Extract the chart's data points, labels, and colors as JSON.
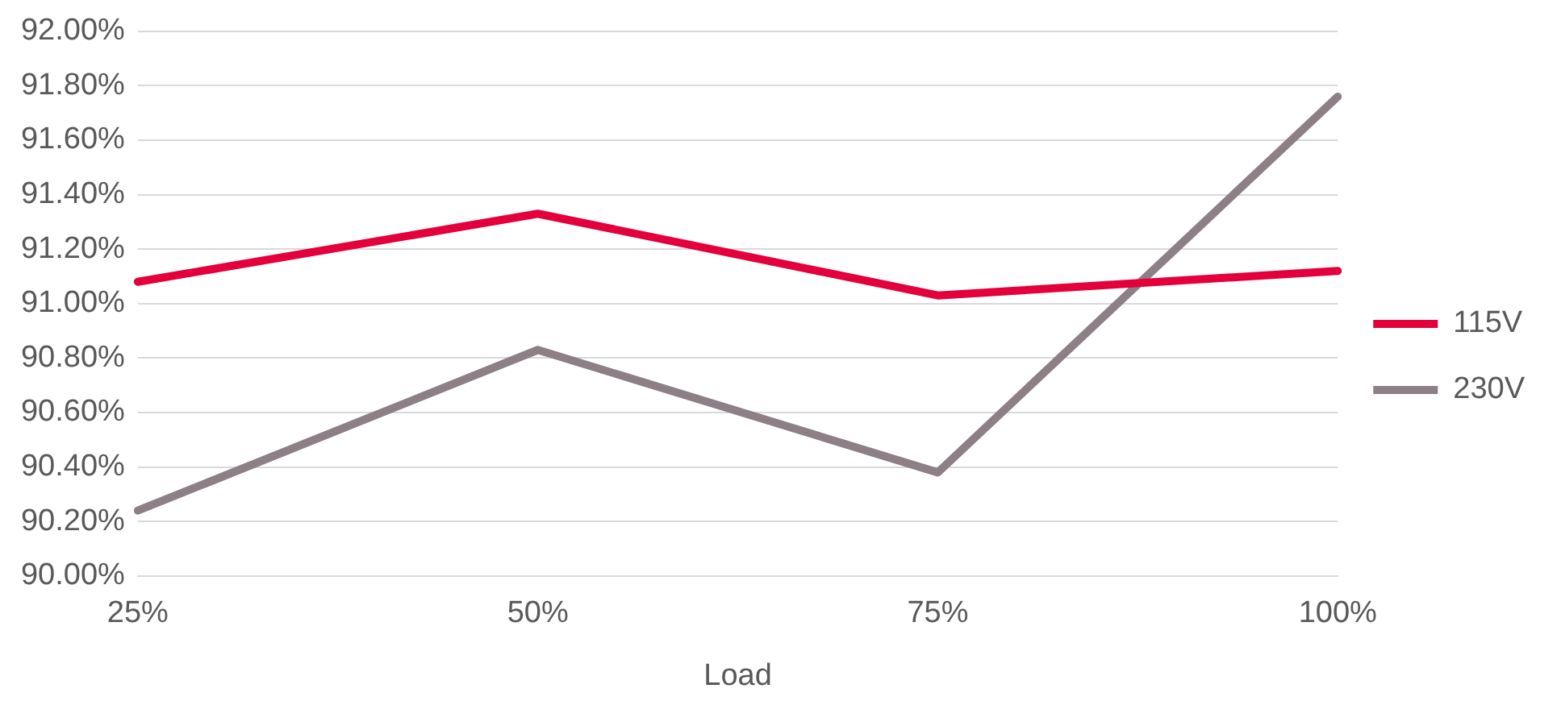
{
  "chart_data": {
    "type": "line",
    "xlabel": "Load",
    "categories": [
      "25%",
      "50%",
      "75%",
      "100%"
    ],
    "series": [
      {
        "name": "115V",
        "color": "#e4003a",
        "values": [
          91.08,
          91.33,
          91.03,
          91.12
        ]
      },
      {
        "name": "230V",
        "color": "#8c7f86",
        "values": [
          90.24,
          90.83,
          90.38,
          91.76
        ]
      }
    ],
    "ylim": [
      90,
      92
    ],
    "yticks": [
      {
        "value": 90,
        "label": "90.00%"
      },
      {
        "value": 90.2,
        "label": "90.20%"
      },
      {
        "value": 90.4,
        "label": "90.40%"
      },
      {
        "value": 90.6,
        "label": "90.60%"
      },
      {
        "value": 90.8,
        "label": "90.80%"
      },
      {
        "value": 91,
        "label": "91.00%"
      },
      {
        "value": 91.2,
        "label": "91.20%"
      },
      {
        "value": 91.4,
        "label": "91.40%"
      },
      {
        "value": 91.6,
        "label": "91.60%"
      },
      {
        "value": 91.8,
        "label": "91.80%"
      },
      {
        "value": 92,
        "label": "92.00%"
      }
    ],
    "grid": "y",
    "legend": "right",
    "marker": "none",
    "line_style": "solid"
  }
}
